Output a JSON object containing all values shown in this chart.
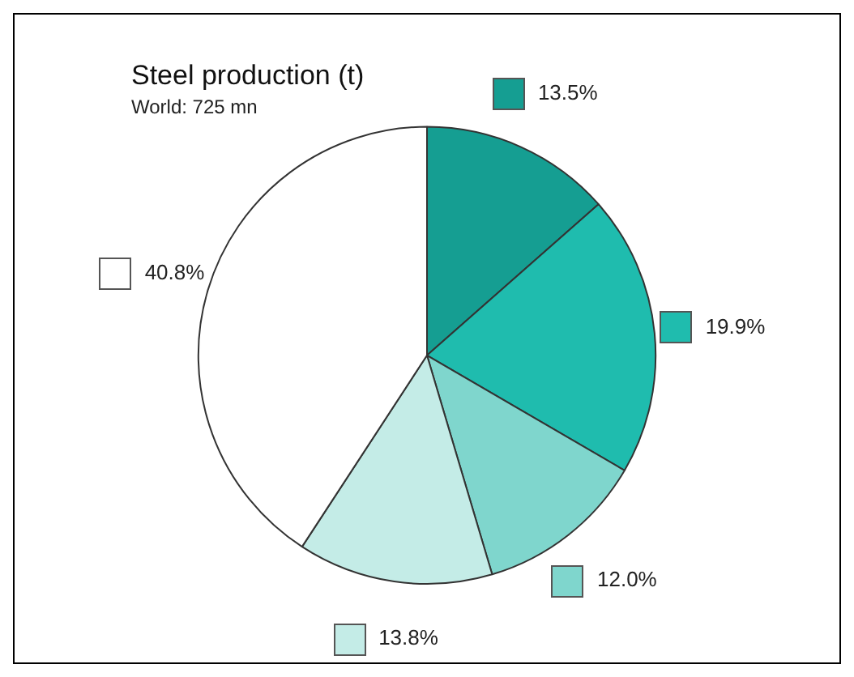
{
  "chart_data": {
    "type": "pie",
    "title": "Steel production (t)",
    "subtitle": "World: 725 mn",
    "categories": [
      null,
      null,
      null,
      null,
      null
    ],
    "values": [
      13.5,
      19.9,
      12.0,
      13.8,
      40.8
    ],
    "value_labels": [
      "13.5%",
      "19.9%",
      "12.0%",
      "13.8%",
      "40.8%"
    ],
    "colors": [
      "#159e92",
      "#1fbcae",
      "#7fd6cd",
      "#c4ece7",
      "#ffffff"
    ],
    "legend": false
  }
}
